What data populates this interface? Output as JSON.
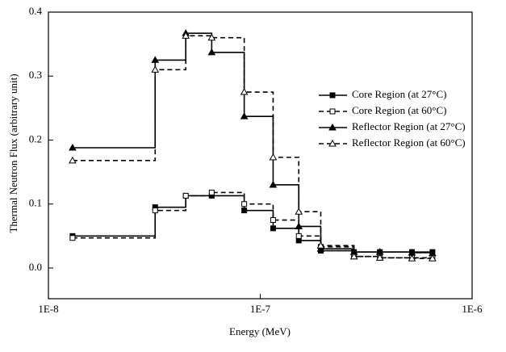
{
  "chart_data": {
    "type": "step",
    "x_label": "Energy (MeV)",
    "y_label": "Thermal Neutron Flux (arbitrary unit)",
    "x": [
      1.3e-08,
      3.19e-08,
      4.45e-08,
      5.9e-08,
      8.4e-08,
      1.15e-07,
      1.52e-07,
      1.93e-07,
      2.77e-07,
      3.67e-07,
      5.2e-07,
      6.5e-07
    ],
    "xscale": "log",
    "xlim": [
      1e-08,
      1e-06
    ],
    "xticks": [
      {
        "value": 1e-08,
        "label": "1E-8"
      },
      {
        "value": 1e-07,
        "label": "1E-7"
      },
      {
        "value": 1e-06,
        "label": "1E-6"
      }
    ],
    "ylim": [
      -0.048,
      0.4
    ],
    "yticks": [
      {
        "value": 0,
        "label": "0.0"
      },
      0.1,
      0.2,
      0.3,
      0.4
    ],
    "legend": "right",
    "series": [
      {
        "name": "Core Region (at 27°C)",
        "color": "#000000",
        "dash": false,
        "marker": "square",
        "filled": true,
        "values": [
          0.05,
          0.095,
          0.113,
          0.113,
          0.09,
          0.062,
          0.043,
          0.027,
          0.025,
          0.025,
          0.025,
          0.025
        ]
      },
      {
        "name": "Core Region (at 60°C)",
        "color": "#000000",
        "dash": true,
        "marker": "square",
        "filled": false,
        "values": [
          0.047,
          0.09,
          0.113,
          0.118,
          0.1,
          0.075,
          0.05,
          0.033,
          0.018,
          0.016,
          0.016,
          0.016
        ]
      },
      {
        "name": "Reflector Region (at 27°C)",
        "color": "#000000",
        "dash": false,
        "marker": "triangle",
        "filled": true,
        "values": [
          0.188,
          0.325,
          0.367,
          0.337,
          0.237,
          0.13,
          0.065,
          0.03,
          0.025,
          0.025,
          0.024,
          0.023
        ]
      },
      {
        "name": "Reflector Region (at 60°C)",
        "color": "#000000",
        "dash": true,
        "marker": "triangle",
        "filled": false,
        "values": [
          0.168,
          0.31,
          0.363,
          0.36,
          0.275,
          0.173,
          0.088,
          0.035,
          0.018,
          0.016,
          0.015,
          0.015
        ]
      }
    ]
  }
}
